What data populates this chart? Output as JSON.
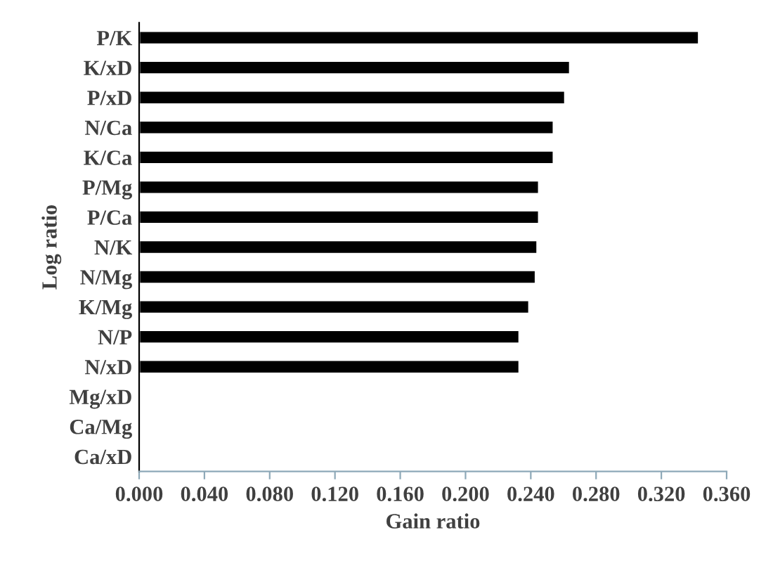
{
  "chart_data": {
    "type": "bar",
    "orientation": "horizontal",
    "xlabel": "Gain ratio",
    "ylabel": "Log ratio",
    "categories": [
      "P/K",
      "K/xD",
      "P/xD",
      "N/Ca",
      "K/Ca",
      "P/Mg",
      "P/Ca",
      "N/K",
      "N/Mg",
      "K/Mg",
      "N/P",
      "N/xD",
      "Mg/xD",
      "Ca/Mg",
      "Ca/xD"
    ],
    "values": [
      0.343,
      0.264,
      0.261,
      0.254,
      0.254,
      0.245,
      0.245,
      0.244,
      0.243,
      0.239,
      0.233,
      0.233,
      null,
      null,
      null
    ],
    "color": "#000000",
    "xlim": [
      0,
      0.36
    ],
    "xticks": [
      {
        "value": 0,
        "label": "0.000"
      },
      {
        "value": 0.04,
        "label": "0.040"
      },
      {
        "value": 0.08,
        "label": "0.080"
      },
      {
        "value": 0.12,
        "label": "0.120"
      },
      {
        "value": 0.16,
        "label": "0.160"
      },
      {
        "value": 0.2,
        "label": "0.200"
      },
      {
        "value": 0.24,
        "label": "0.240"
      },
      {
        "value": 0.28,
        "label": "0.280"
      },
      {
        "value": 0.32,
        "label": "0.320"
      },
      {
        "value": 0.36,
        "label": "0.360"
      }
    ],
    "grid": false,
    "legend": false
  }
}
